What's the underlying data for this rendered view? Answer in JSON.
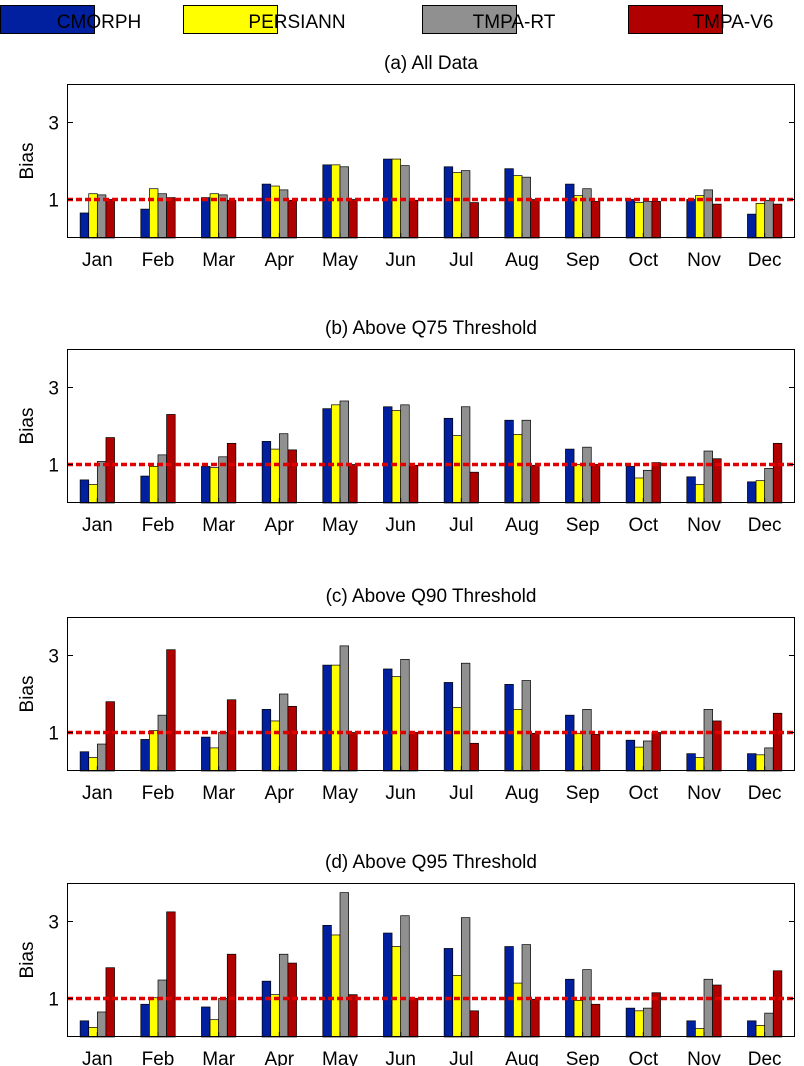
{
  "legend": [
    {
      "label": "CMORPH",
      "color": "#0020a0"
    },
    {
      "label": "PERSIANN",
      "color": "#ffff00"
    },
    {
      "label": "TMPA-RT",
      "color": "#909090"
    },
    {
      "label": "TMPA-V6",
      "color": "#b00000"
    }
  ],
  "reference_line_color": "#e00000",
  "chart_data": [
    {
      "type": "bar",
      "title": "(a) All Data",
      "ylabel": "Bias",
      "ylim": [
        0,
        4
      ],
      "yticks": [
        "1",
        "3"
      ],
      "reference_line": 1,
      "categories": [
        "Jan",
        "Feb",
        "Mar",
        "Apr",
        "May",
        "Jun",
        "Jul",
        "Aug",
        "Sep",
        "Oct",
        "Nov",
        "Dec"
      ],
      "series": [
        {
          "name": "CMORPH",
          "values": [
            0.65,
            0.75,
            1.05,
            1.4,
            1.9,
            2.05,
            1.85,
            1.8,
            1.4,
            1.0,
            1.0,
            0.62
          ]
        },
        {
          "name": "PERSIANN",
          "values": [
            1.15,
            1.28,
            1.15,
            1.35,
            1.9,
            2.05,
            1.7,
            1.62,
            1.1,
            0.92,
            1.1,
            0.9
          ]
        },
        {
          "name": "TMPA-RT",
          "values": [
            1.12,
            1.15,
            1.12,
            1.25,
            1.85,
            1.88,
            1.75,
            1.58,
            1.28,
            0.95,
            1.25,
            0.98
          ]
        },
        {
          "name": "TMPA-V6",
          "values": [
            1.0,
            1.05,
            0.98,
            0.98,
            1.0,
            0.98,
            0.92,
            1.0,
            0.95,
            0.95,
            0.88,
            0.88
          ]
        }
      ]
    },
    {
      "type": "bar",
      "title": "(b) Above Q75 Threshold",
      "ylabel": "Bias",
      "ylim": [
        0,
        4
      ],
      "yticks": [
        "1",
        "3"
      ],
      "reference_line": 1,
      "categories": [
        "Jan",
        "Feb",
        "Mar",
        "Apr",
        "May",
        "Jun",
        "Jul",
        "Aug",
        "Sep",
        "Oct",
        "Nov",
        "Dec"
      ],
      "series": [
        {
          "name": "CMORPH",
          "values": [
            0.6,
            0.7,
            0.95,
            1.6,
            2.45,
            2.5,
            2.2,
            2.15,
            1.4,
            0.95,
            0.68,
            0.55
          ]
        },
        {
          "name": "PERSIANN",
          "values": [
            0.48,
            0.95,
            0.92,
            1.4,
            2.55,
            2.4,
            1.75,
            1.78,
            1.0,
            0.65,
            0.48,
            0.58
          ]
        },
        {
          "name": "TMPA-RT",
          "values": [
            1.08,
            1.25,
            1.2,
            1.8,
            2.65,
            2.55,
            2.5,
            2.15,
            1.45,
            0.85,
            1.35,
            0.9
          ]
        },
        {
          "name": "TMPA-V6",
          "values": [
            1.7,
            2.3,
            1.55,
            1.38,
            1.0,
            0.98,
            0.8,
            0.98,
            1.0,
            1.05,
            1.15,
            1.55
          ]
        }
      ]
    },
    {
      "type": "bar",
      "title": "(c) Above Q90 Threshold",
      "ylabel": "Bias",
      "ylim": [
        0,
        4
      ],
      "yticks": [
        "1",
        "3"
      ],
      "reference_line": 1,
      "categories": [
        "Jan",
        "Feb",
        "Mar",
        "Apr",
        "May",
        "Jun",
        "Jul",
        "Aug",
        "Sep",
        "Oct",
        "Nov",
        "Dec"
      ],
      "series": [
        {
          "name": "CMORPH",
          "values": [
            0.5,
            0.82,
            0.88,
            1.6,
            2.75,
            2.65,
            2.3,
            2.25,
            1.45,
            0.8,
            0.45,
            0.45
          ]
        },
        {
          "name": "PERSIANN",
          "values": [
            0.35,
            1.05,
            0.6,
            1.3,
            2.75,
            2.45,
            1.65,
            1.6,
            0.98,
            0.62,
            0.35,
            0.42
          ]
        },
        {
          "name": "TMPA-RT",
          "values": [
            0.7,
            1.45,
            1.0,
            2.0,
            3.25,
            2.9,
            2.8,
            2.35,
            1.6,
            0.78,
            1.6,
            0.6
          ]
        },
        {
          "name": "TMPA-V6",
          "values": [
            1.8,
            3.15,
            1.85,
            1.68,
            1.0,
            1.0,
            0.72,
            0.98,
            0.95,
            1.0,
            1.3,
            1.5
          ]
        }
      ]
    },
    {
      "type": "bar",
      "title": "(d) Above Q95 Threshold",
      "ylabel": "Bias",
      "ylim": [
        0,
        4
      ],
      "yticks": [
        "1",
        "3"
      ],
      "reference_line": 1,
      "categories": [
        "Jan",
        "Feb",
        "Mar",
        "Apr",
        "May",
        "Jun",
        "Jul",
        "Aug",
        "Sep",
        "Oct",
        "Nov",
        "Dec"
      ],
      "series": [
        {
          "name": "CMORPH",
          "values": [
            0.42,
            0.85,
            0.78,
            1.45,
            2.9,
            2.7,
            2.3,
            2.35,
            1.5,
            0.75,
            0.42,
            0.42
          ]
        },
        {
          "name": "PERSIANN",
          "values": [
            0.25,
            1.02,
            0.45,
            1.1,
            2.65,
            2.35,
            1.6,
            1.4,
            0.95,
            0.68,
            0.22,
            0.3
          ]
        },
        {
          "name": "TMPA-RT",
          "values": [
            0.65,
            1.48,
            1.0,
            2.15,
            3.75,
            3.15,
            3.1,
            2.4,
            1.75,
            0.75,
            1.5,
            0.62
          ]
        },
        {
          "name": "TMPA-V6",
          "values": [
            1.8,
            3.25,
            2.15,
            1.92,
            1.1,
            1.0,
            0.68,
            0.98,
            0.85,
            1.15,
            1.35,
            1.72
          ]
        }
      ]
    }
  ]
}
